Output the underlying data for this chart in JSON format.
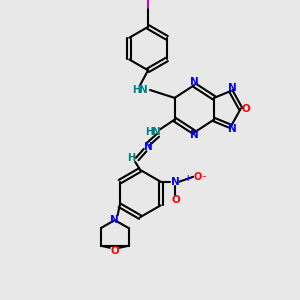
{
  "bg_color": "#e8e8e8",
  "bond_color": "#000000",
  "bond_lw": 1.5,
  "atom_colors": {
    "N": "#0000ff",
    "O": "#ff0000",
    "I": "#cc00cc",
    "NH": "#008080",
    "H": "#008080",
    "C": "#000000"
  },
  "font_size": 7.5
}
